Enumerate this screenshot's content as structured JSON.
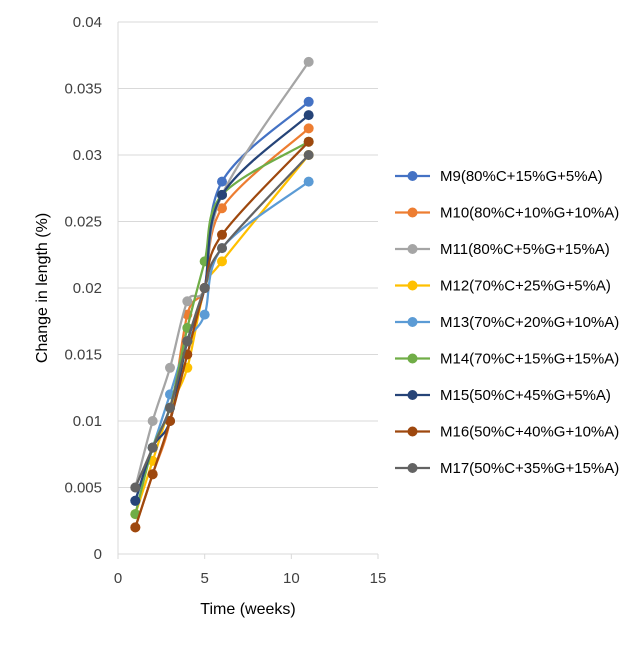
{
  "chart_data": {
    "type": "line",
    "title": "",
    "xlabel": "Time (weeks)",
    "ylabel": "Change in length (%)",
    "xlim": [
      0,
      15
    ],
    "ylim": [
      0,
      0.04
    ],
    "x_ticks": [
      "0",
      "5",
      "10",
      "15"
    ],
    "y_ticks": [
      "0",
      "0.005",
      "0.01",
      "0.015",
      "0.02",
      "0.025",
      "0.03",
      "0.035",
      "0.04"
    ],
    "x": [
      1,
      2,
      3,
      4,
      5,
      6,
      11
    ],
    "grid": "horizontal",
    "legend_position": "right",
    "series": [
      {
        "name": "M9(80%C+15%G+5%A)",
        "color": "#4472C4",
        "values": [
          0.004,
          0.008,
          0.011,
          0.016,
          0.02,
          0.028,
          0.034
        ]
      },
      {
        "name": "M10(80%C+10%G+10%A)",
        "color": "#ED7D31",
        "values": [
          0.002,
          0.006,
          0.01,
          0.018,
          0.02,
          0.026,
          0.032
        ]
      },
      {
        "name": "M11(80%C+5%G+15%A)",
        "color": "#A5A5A5",
        "values": [
          0.005,
          0.01,
          0.014,
          0.019,
          0.02,
          0.027,
          0.037
        ]
      },
      {
        "name": "M12(70%C+25%G+5%A)",
        "color": "#FFC000",
        "values": [
          0.003,
          0.007,
          0.011,
          0.014,
          0.02,
          0.022,
          0.03
        ]
      },
      {
        "name": "M13(70%C+20%G+10%A)",
        "color": "#5B9BD5",
        "values": [
          0.004,
          0.008,
          0.012,
          0.016,
          0.018,
          0.023,
          0.028
        ]
      },
      {
        "name": "M14(70%C+15%G+15%A)",
        "color": "#70AD47",
        "values": [
          0.003,
          0.008,
          0.011,
          0.017,
          0.022,
          0.027,
          0.031
        ]
      },
      {
        "name": "M15(50%C+45%G+5%A)",
        "color": "#264478",
        "values": [
          0.004,
          0.008,
          0.01,
          0.016,
          0.02,
          0.027,
          0.033
        ]
      },
      {
        "name": "M16(50%C+40%G+10%A)",
        "color": "#9E480E",
        "values": [
          0.002,
          0.006,
          0.01,
          0.015,
          0.02,
          0.024,
          0.031
        ]
      },
      {
        "name": "M17(50%C+35%G+15%A)",
        "color": "#636363",
        "values": [
          0.005,
          0.008,
          0.011,
          0.016,
          0.02,
          0.023,
          0.03
        ]
      }
    ]
  }
}
